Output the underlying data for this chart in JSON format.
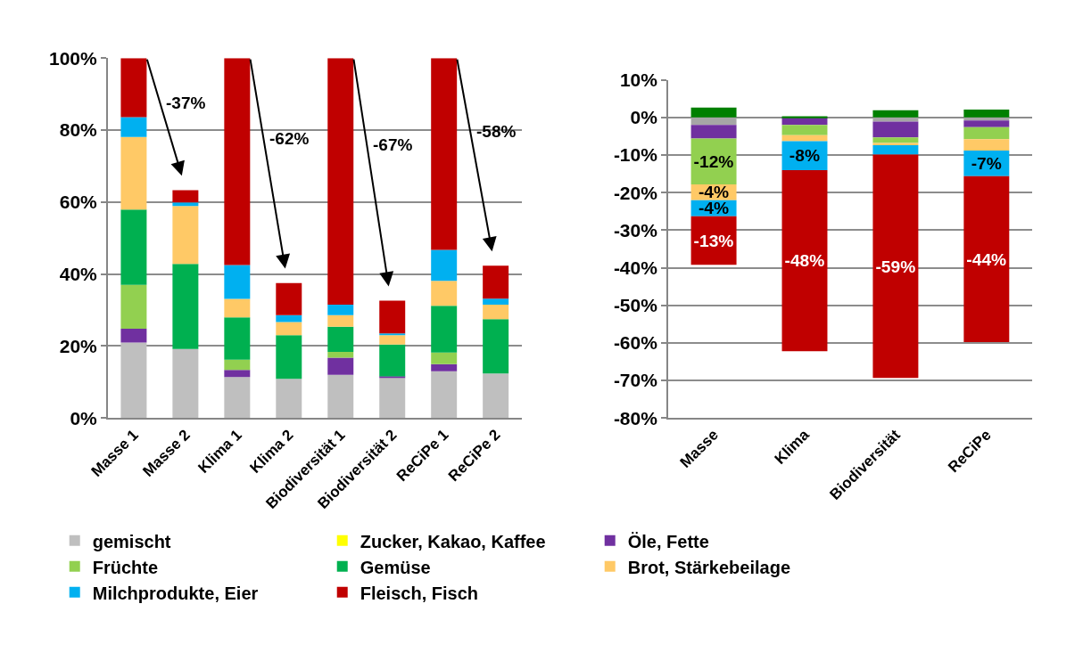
{
  "chart_data": [
    {
      "type": "bar",
      "stacked": true,
      "categories": [
        "Masse 1",
        "Masse 2",
        "Klima 1",
        "Klima 2",
        "Biodiversität 1",
        "Biodiversität 2",
        "ReCiPe 1",
        "ReCiPe 2"
      ],
      "series": [
        {
          "name": "gemischt",
          "color": "#bfbfbf",
          "values": [
            21.0,
            19.2,
            11.4,
            10.9,
            12.0,
            11.2,
            13.0,
            12.4
          ]
        },
        {
          "name": "Zucker, Kakao, Kaffee",
          "color": "#ffff00",
          "values": [
            0,
            0,
            0,
            0,
            0,
            0,
            0,
            0
          ]
        },
        {
          "name": "Öle, Fette",
          "color": "#7030a0",
          "values": [
            3.8,
            0,
            2.0,
            0,
            4.8,
            0.4,
            2.0,
            0
          ]
        },
        {
          "name": "Früchte",
          "color": "#92d050",
          "values": [
            12.2,
            0,
            2.8,
            0,
            1.6,
            0,
            3.2,
            0
          ]
        },
        {
          "name": "Gemüse",
          "color": "#00b050",
          "values": [
            20.9,
            23.6,
            11.8,
            12.1,
            7.0,
            8.8,
            13.0,
            15.1
          ]
        },
        {
          "name": "Brot, Stärkebeilage",
          "color": "#ffc966",
          "values": [
            20.2,
            16.1,
            5.1,
            3.7,
            3.2,
            2.6,
            6.9,
            4.0
          ]
        },
        {
          "name": "Milchprodukte, Eier",
          "color": "#00b0f0",
          "values": [
            5.5,
            1.0,
            9.4,
            1.9,
            2.9,
            0.5,
            8.6,
            1.7
          ]
        },
        {
          "name": "Fleisch, Fisch",
          "color": "#c00000",
          "values": [
            16.4,
            3.4,
            57.5,
            8.9,
            68.5,
            9.1,
            53.3,
            9.1
          ]
        }
      ],
      "ylim": [
        0,
        100
      ],
      "yticks": [
        {
          "value": 0,
          "label": "0%"
        },
        {
          "value": 20,
          "label": "20%"
        },
        {
          "value": 40,
          "label": "40%"
        },
        {
          "value": 60,
          "label": "60%"
        },
        {
          "value": 80,
          "label": "80%"
        },
        {
          "value": 100,
          "label": "100%"
        }
      ],
      "grid": "y",
      "legend": "bottom",
      "annotations": [
        "-37%",
        "-62%",
        "-67%",
        "-58%"
      ]
    },
    {
      "type": "bar",
      "stacked": true,
      "categories": [
        "Masse",
        "Klima",
        "Biodiversität",
        "ReCiPe"
      ],
      "series": [
        {
          "color": "#a6a6a6",
          "values": [
            -2.0,
            null,
            -1.1,
            -0.8
          ]
        },
        {
          "color": "#7030a0",
          "values": [
            -3.6,
            -2.0,
            -4.2,
            -1.8
          ]
        },
        {
          "color": "#92d050",
          "values": [
            -12.2,
            -2.7,
            -1.5,
            -3.2
          ],
          "value_labels": [
            "-12%",
            null,
            null,
            null
          ]
        },
        {
          "color": "#008000",
          "values": [
            2.6,
            0.3,
            1.9,
            2.1
          ]
        },
        {
          "color": "#ffc966",
          "values": [
            -4.2,
            -1.6,
            -0.6,
            -3.0
          ],
          "value_labels": [
            "-4%",
            null,
            null,
            null
          ]
        },
        {
          "color": "#00b0f0",
          "values": [
            -4.3,
            -7.7,
            -2.5,
            -6.8
          ],
          "value_labels": [
            "-4%",
            "-8%",
            null,
            "-7%"
          ]
        },
        {
          "color": "#c00000",
          "values": [
            -12.9,
            -48.2,
            -59.4,
            -44.2
          ],
          "value_labels": [
            "-13%",
            "-48%",
            "-59%",
            "-44%"
          ]
        }
      ],
      "ylim": [
        -80,
        10
      ],
      "yticks": [
        {
          "value": -80,
          "label": "-80%"
        },
        {
          "value": -70,
          "label": "-70%"
        },
        {
          "value": -60,
          "label": "-60%"
        },
        {
          "value": -50,
          "label": "-50%"
        },
        {
          "value": -40,
          "label": "-40%"
        },
        {
          "value": -30,
          "label": "-30%"
        },
        {
          "value": -20,
          "label": "-20%"
        },
        {
          "value": -10,
          "label": "-10%"
        },
        {
          "value": 0,
          "label": "0%"
        },
        {
          "value": 10,
          "label": "10%"
        }
      ],
      "grid": "y"
    }
  ]
}
